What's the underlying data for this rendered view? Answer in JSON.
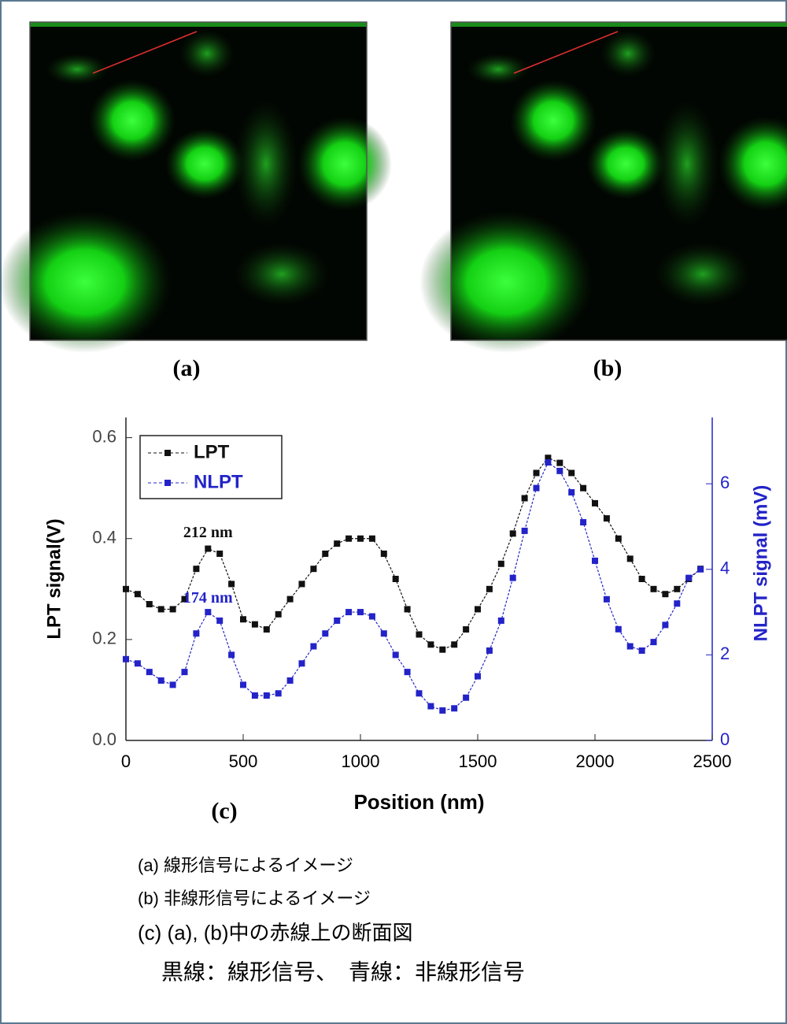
{
  "panels": [
    {
      "label": "(a)"
    },
    {
      "label": "(b)"
    }
  ],
  "chart_data": {
    "type": "line",
    "panel_label": "(c)",
    "x_label": "Position (nm)",
    "y_label": "LPT signal(V)",
    "y2_label": "NLPT signal (mV)",
    "x": [
      0,
      50,
      100,
      150,
      200,
      250,
      300,
      350,
      400,
      450,
      500,
      550,
      600,
      650,
      700,
      750,
      800,
      850,
      900,
      950,
      1000,
      1050,
      1100,
      1150,
      1200,
      1250,
      1300,
      1350,
      1400,
      1450,
      1500,
      1550,
      1600,
      1650,
      1700,
      1750,
      1800,
      1850,
      1900,
      1950,
      2000,
      2050,
      2100,
      2150,
      2200,
      2250,
      2300,
      2350,
      2400,
      2450
    ],
    "series": [
      {
        "name": "LPT",
        "color": "#111111",
        "values": [
          0.3,
          0.29,
          0.27,
          0.26,
          0.26,
          0.28,
          0.34,
          0.38,
          0.37,
          0.31,
          0.24,
          0.23,
          0.22,
          0.25,
          0.28,
          0.31,
          0.34,
          0.37,
          0.39,
          0.4,
          0.4,
          0.4,
          0.37,
          0.32,
          0.26,
          0.21,
          0.19,
          0.18,
          0.19,
          0.22,
          0.26,
          0.3,
          0.35,
          0.41,
          0.48,
          0.53,
          0.56,
          0.55,
          0.53,
          0.5,
          0.47,
          0.44,
          0.4,
          0.36,
          0.32,
          0.3,
          0.29,
          0.3,
          0.32,
          0.34
        ]
      },
      {
        "name": "NLPT",
        "color": "#2323c8",
        "axis": "y2",
        "values": [
          1.9,
          1.8,
          1.6,
          1.4,
          1.3,
          1.6,
          2.5,
          3.0,
          2.8,
          2.0,
          1.3,
          1.05,
          1.05,
          1.1,
          1.4,
          1.8,
          2.2,
          2.5,
          2.8,
          3.0,
          3.0,
          2.9,
          2.5,
          2.0,
          1.6,
          1.1,
          0.8,
          0.7,
          0.75,
          1.0,
          1.5,
          2.1,
          2.8,
          3.8,
          4.9,
          5.9,
          6.5,
          6.3,
          5.8,
          5.1,
          4.2,
          3.3,
          2.6,
          2.2,
          2.1,
          2.3,
          2.7,
          3.2,
          3.8,
          4.0
        ]
      }
    ],
    "xlim": [
      0,
      2500
    ],
    "xticks": [
      0,
      500,
      1000,
      1500,
      2000,
      2500
    ],
    "ylim": [
      0,
      0.64
    ],
    "yticks": [
      0.0,
      0.2,
      0.4,
      0.6
    ],
    "y2lim": [
      0,
      7.55
    ],
    "y2ticks": [
      0,
      2,
      4,
      6
    ],
    "legend": "upper left",
    "annotations": [
      {
        "text": "212 nm",
        "x": 350,
        "y": 0.41,
        "color": "#111111"
      },
      {
        "text": "174 nm",
        "x": 350,
        "y": 0.28,
        "color": "#2323c8"
      }
    ]
  },
  "captions": [
    "(a) 線形信号によるイメージ",
    "(b) 非線形信号によるイメージ",
    "(c) (a), (b)中の赤線上の断面図",
    "黒線：線形信号、　青線：非線形信号"
  ]
}
